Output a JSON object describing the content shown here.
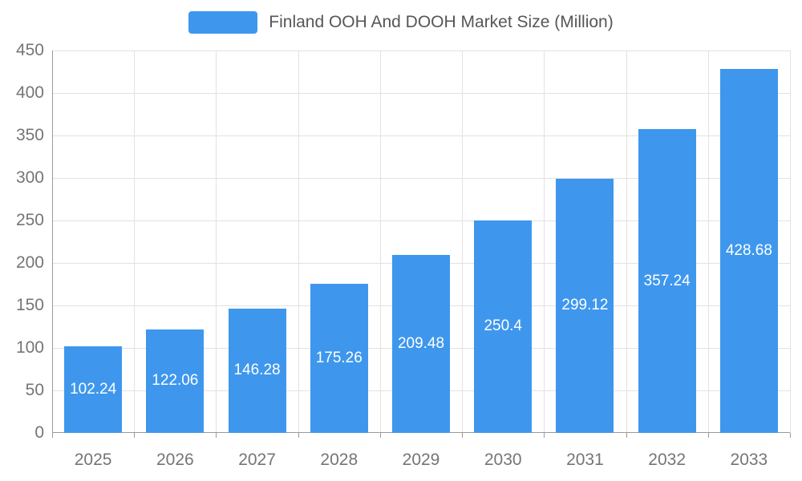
{
  "chart_data": {
    "type": "bar",
    "title": "Finland OOH And DOOH Market Size (Million)",
    "categories": [
      "2025",
      "2026",
      "2027",
      "2028",
      "2029",
      "2030",
      "2031",
      "2032",
      "2033"
    ],
    "values": [
      102.24,
      122.06,
      146.28,
      175.26,
      209.48,
      250.4,
      299.12,
      357.24,
      428.68
    ],
    "value_labels": [
      "102.24",
      "122.06",
      "146.28",
      "175.26",
      "209.48",
      "250.4",
      "299.12",
      "357.24",
      "428.68"
    ],
    "xlabel": "",
    "ylabel": "",
    "ylim": [
      0,
      450
    ],
    "ytick_step": 50,
    "grid": true,
    "legend_position": "top-center",
    "colors": {
      "bar": "#3E97ED",
      "bar_value_text": "#ffffff",
      "axis_text": "#757575",
      "title_text": "#565656",
      "gridline": "#e2e2e2",
      "axis_line": "#9a9a9a",
      "background": "#ffffff"
    }
  }
}
